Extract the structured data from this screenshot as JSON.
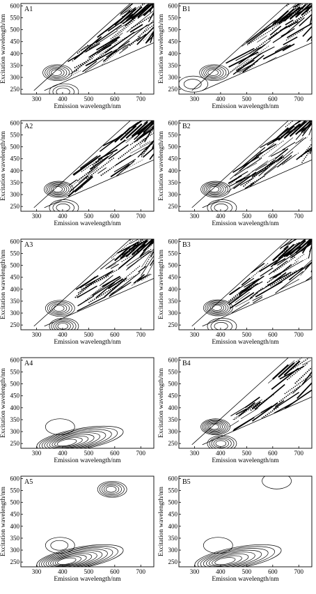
{
  "figure": {
    "xlabel": "Emission wavelength/nm",
    "ylabel": "Excitation wavelength/nm",
    "x_ticks": [
      300,
      400,
      500,
      600,
      700
    ],
    "y_ticks": [
      250,
      300,
      350,
      400,
      450,
      500,
      550,
      600
    ]
  },
  "chart_data": [
    {
      "type": "heatmap",
      "label": "A1",
      "xlabel": "Emission wavelength/nm",
      "ylabel": "Excitation wavelength/nm",
      "xlim": [
        240,
        750
      ],
      "ylim": [
        230,
        610
      ],
      "peaks": [
        {
          "em": 375,
          "ex": 320,
          "rings": 5
        },
        {
          "em": 400,
          "ex": 240,
          "rings": 3
        }
      ],
      "scatter_density": "high"
    },
    {
      "type": "heatmap",
      "label": "B1",
      "xlabel": "Emission wavelength/nm",
      "ylabel": "Excitation wavelength/nm",
      "xlim": [
        240,
        750
      ],
      "ylim": [
        230,
        610
      ],
      "peaks": [
        {
          "em": 370,
          "ex": 320,
          "rings": 5
        },
        {
          "em": 290,
          "ex": 272,
          "rings": 2
        }
      ],
      "scatter_density": "high"
    },
    {
      "type": "heatmap",
      "label": "A2",
      "xlabel": "Emission wavelength/nm",
      "ylabel": "Excitation wavelength/nm",
      "xlim": [
        240,
        750
      ],
      "ylim": [
        230,
        610
      ],
      "peaks": [
        {
          "em": 380,
          "ex": 322,
          "rings": 6
        },
        {
          "em": 400,
          "ex": 245,
          "rings": 3
        }
      ],
      "scatter_density": "high"
    },
    {
      "type": "heatmap",
      "label": "B2",
      "xlabel": "Emission wavelength/nm",
      "ylabel": "Excitation wavelength/nm",
      "xlim": [
        240,
        750
      ],
      "ylim": [
        230,
        610
      ],
      "peaks": [
        {
          "em": 375,
          "ex": 322,
          "rings": 6
        },
        {
          "em": 400,
          "ex": 245,
          "rings": 3
        }
      ],
      "scatter_density": "high"
    },
    {
      "type": "heatmap",
      "label": "A3",
      "xlabel": "Emission wavelength/nm",
      "ylabel": "Excitation wavelength/nm",
      "xlim": [
        240,
        750
      ],
      "ylim": [
        230,
        610
      ],
      "peaks": [
        {
          "em": 385,
          "ex": 320,
          "rings": 5
        },
        {
          "em": 400,
          "ex": 245,
          "rings": 5
        }
      ],
      "scatter_density": "high"
    },
    {
      "type": "heatmap",
      "label": "B3",
      "xlabel": "Emission wavelength/nm",
      "ylabel": "Excitation wavelength/nm",
      "xlim": [
        240,
        750
      ],
      "ylim": [
        230,
        610
      ],
      "peaks": [
        {
          "em": 385,
          "ex": 322,
          "rings": 6
        },
        {
          "em": 400,
          "ex": 245,
          "rings": 3
        }
      ],
      "scatter_density": "high"
    },
    {
      "type": "heatmap",
      "label": "A4",
      "xlabel": "Emission wavelength/nm",
      "ylabel": "Excitation wavelength/nm",
      "xlim": [
        240,
        750
      ],
      "ylim": [
        230,
        610
      ],
      "peaks": [
        {
          "em": 385,
          "ex": 320,
          "rings": 1
        },
        {
          "em": 410,
          "ex": 252,
          "rings": 9
        }
      ],
      "scatter_density": "none"
    },
    {
      "type": "heatmap",
      "label": "B4",
      "xlabel": "Emission wavelength/nm",
      "ylabel": "Excitation wavelength/nm",
      "xlim": [
        240,
        750
      ],
      "ylim": [
        230,
        610
      ],
      "peaks": [
        {
          "em": 375,
          "ex": 320,
          "rings": 7
        },
        {
          "em": 400,
          "ex": 250,
          "rings": 5
        }
      ],
      "scatter_density": "medium"
    },
    {
      "type": "heatmap",
      "label": "A5",
      "xlabel": "Emission wavelength/nm",
      "ylabel": "Excitation wavelength/nm",
      "xlim": [
        240,
        750
      ],
      "ylim": [
        230,
        610
      ],
      "peaks": [
        {
          "em": 585,
          "ex": 555,
          "rings": 5
        },
        {
          "em": 385,
          "ex": 320,
          "rings": 2
        },
        {
          "em": 410,
          "ex": 252,
          "rings": 10
        }
      ],
      "scatter_density": "none"
    },
    {
      "type": "heatmap",
      "label": "B5",
      "xlabel": "Emission wavelength/nm",
      "ylabel": "Excitation wavelength/nm",
      "xlim": [
        240,
        750
      ],
      "ylim": [
        230,
        610
      ],
      "peaks": [
        {
          "em": 385,
          "ex": 320,
          "rings": 1
        },
        {
          "em": 410,
          "ex": 252,
          "rings": 8
        },
        {
          "em": 610,
          "ex": 590,
          "rings": 1
        }
      ],
      "scatter_density": "none"
    }
  ]
}
